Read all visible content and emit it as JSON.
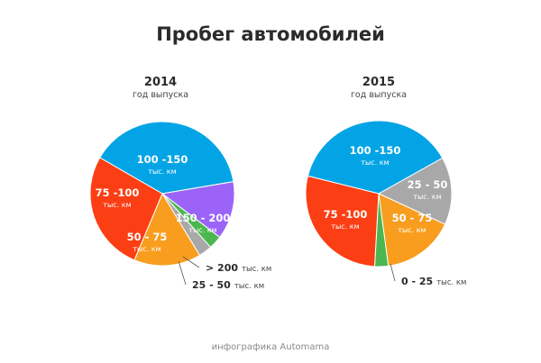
{
  "page": {
    "title": "Пробег автомобилей",
    "footer": "инфографика Automama"
  },
  "chart_data": [
    {
      "type": "pie",
      "title": "2014",
      "subtitle": "год выпуска",
      "unit": "тыс. км",
      "slices": [
        {
          "label": "100 -150",
          "value": 39,
          "color": "#03a4e6"
        },
        {
          "label": "150 - 200",
          "value": 13,
          "color": "#9b63f7"
        },
        {
          "label": "> 200",
          "value": 3,
          "color": "#4cb74e"
        },
        {
          "label": "25 - 50",
          "value": 3,
          "color": "#a8a8a8"
        },
        {
          "label": "50 - 75",
          "value": 15,
          "color": "#f89d1e"
        },
        {
          "label": "75 -100",
          "value": 27,
          "color": "#fc3e14"
        }
      ]
    },
    {
      "type": "pie",
      "title": "2015",
      "subtitle": "год выпуска",
      "unit": "тыс. км",
      "slices": [
        {
          "label": "100 -150",
          "value": 38,
          "color": "#03a4e6"
        },
        {
          "label": "25 - 50",
          "value": 15,
          "color": "#a8a8a8"
        },
        {
          "label": "50 - 75",
          "value": 16,
          "color": "#f89d1e"
        },
        {
          "label": "0 - 25",
          "value": 3,
          "color": "#4cb74e"
        },
        {
          "label": "75 -100",
          "value": 28,
          "color": "#fc3e14"
        }
      ]
    }
  ]
}
